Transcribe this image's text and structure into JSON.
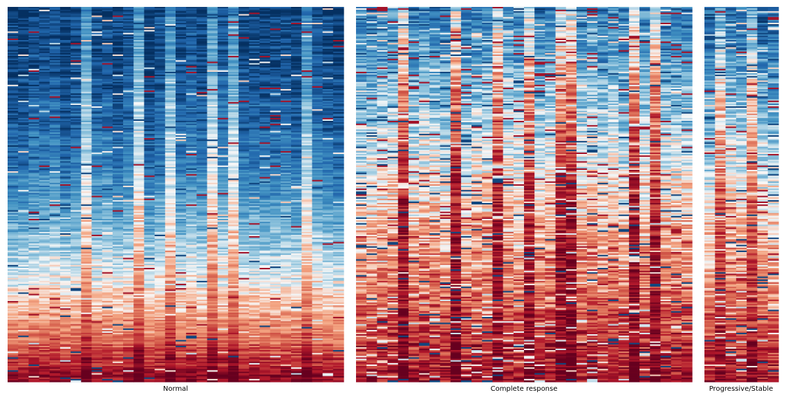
{
  "chart_data": {
    "type": "heatmap",
    "colormap": "RdBu_r",
    "colorbar": false,
    "axes_visible": false,
    "panels": [
      {
        "label": "Normal",
        "columns": 32,
        "rows": 260,
        "gradient": {
          "top": 0.06,
          "bottom": 0.94,
          "curve": 2.2
        },
        "noise": 0.16,
        "outlier_rate": 0.05,
        "bright_columns": [
          7,
          12,
          15,
          19,
          21,
          28
        ],
        "bright_strength": 0.25
      },
      {
        "label": "Complete response",
        "columns": 32,
        "rows": 260,
        "gradient": {
          "top": 0.18,
          "bottom": 0.9,
          "curve": 1.0
        },
        "noise": 0.26,
        "outlier_rate": 0.14,
        "bright_columns": [
          4,
          9,
          13,
          16,
          19,
          20,
          26,
          28
        ],
        "bright_strength": 0.35
      },
      {
        "label": "Progressive/Stable",
        "columns": 7,
        "rows": 260,
        "gradient": {
          "top": 0.12,
          "bottom": 0.88,
          "curve": 1.0
        },
        "noise": 0.24,
        "outlier_rate": 0.14,
        "bright_columns": [
          1,
          4
        ],
        "bright_strength": 0.25
      }
    ]
  }
}
